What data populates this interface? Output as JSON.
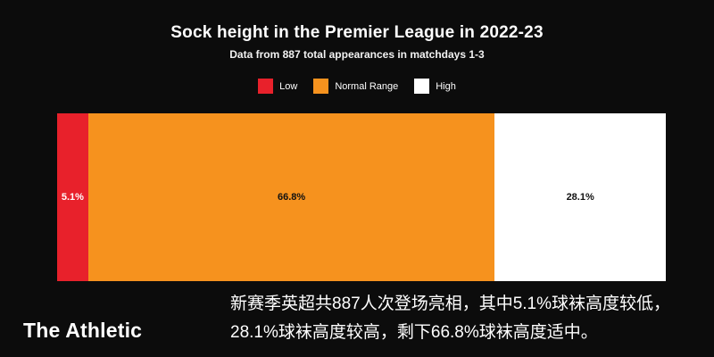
{
  "header": {
    "title": "Sock height in the Premier League in 2022-23",
    "subtitle": "Data from 887 total appearances in matchdays 1-3"
  },
  "legend": {
    "items": [
      {
        "label": "Low"
      },
      {
        "label": "Normal Range"
      },
      {
        "label": "High"
      }
    ]
  },
  "chart_data": {
    "type": "bar",
    "variant": "horizontal-stacked-percentage",
    "title": "Sock height in the Premier League in 2022-23",
    "subtitle": "Data from 887 total appearances in matchdays 1-3",
    "categories": [
      "Low",
      "Normal Range",
      "High"
    ],
    "values": [
      5.1,
      66.8,
      28.1
    ],
    "value_labels": [
      "5.1%",
      "66.8%",
      "28.1%"
    ],
    "colors": [
      "#e8212b",
      "#f6921e",
      "#ffffff"
    ],
    "label_colors": [
      "#ffffff",
      "#111111",
      "#111111"
    ],
    "total": 100,
    "legend_position": "top",
    "grid": false,
    "background": "#0c0c0c"
  },
  "footer": {
    "brand": "The Athletic",
    "annotation": "新赛季英超共887人次登场亮相，其中5.1%球袜高度较低，28.1%球袜高度较高，剩下66.8%球袜高度适中。"
  }
}
